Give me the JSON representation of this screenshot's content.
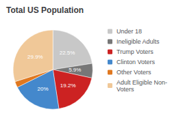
{
  "chart_data": {
    "type": "pie",
    "title": "Total US Population",
    "categories": [
      "Under 18",
      "Ineligible Adults",
      "Trump Voters",
      "Clinton Voters",
      "Other Voters",
      "Adult Eligible Non-\nVoters"
    ],
    "values": [
      22.5,
      5.9,
      19.2,
      20.0,
      2.5,
      29.9
    ],
    "value_labels": [
      "22.5%",
      "5.9%",
      "19.2%",
      "20%",
      null,
      "29.9%"
    ],
    "colors": [
      "#c8c8c8",
      "#777777",
      "#cc2222",
      "#4488cc",
      "#e07820",
      "#f0c898"
    ],
    "data_labels": true,
    "legend": "right"
  }
}
